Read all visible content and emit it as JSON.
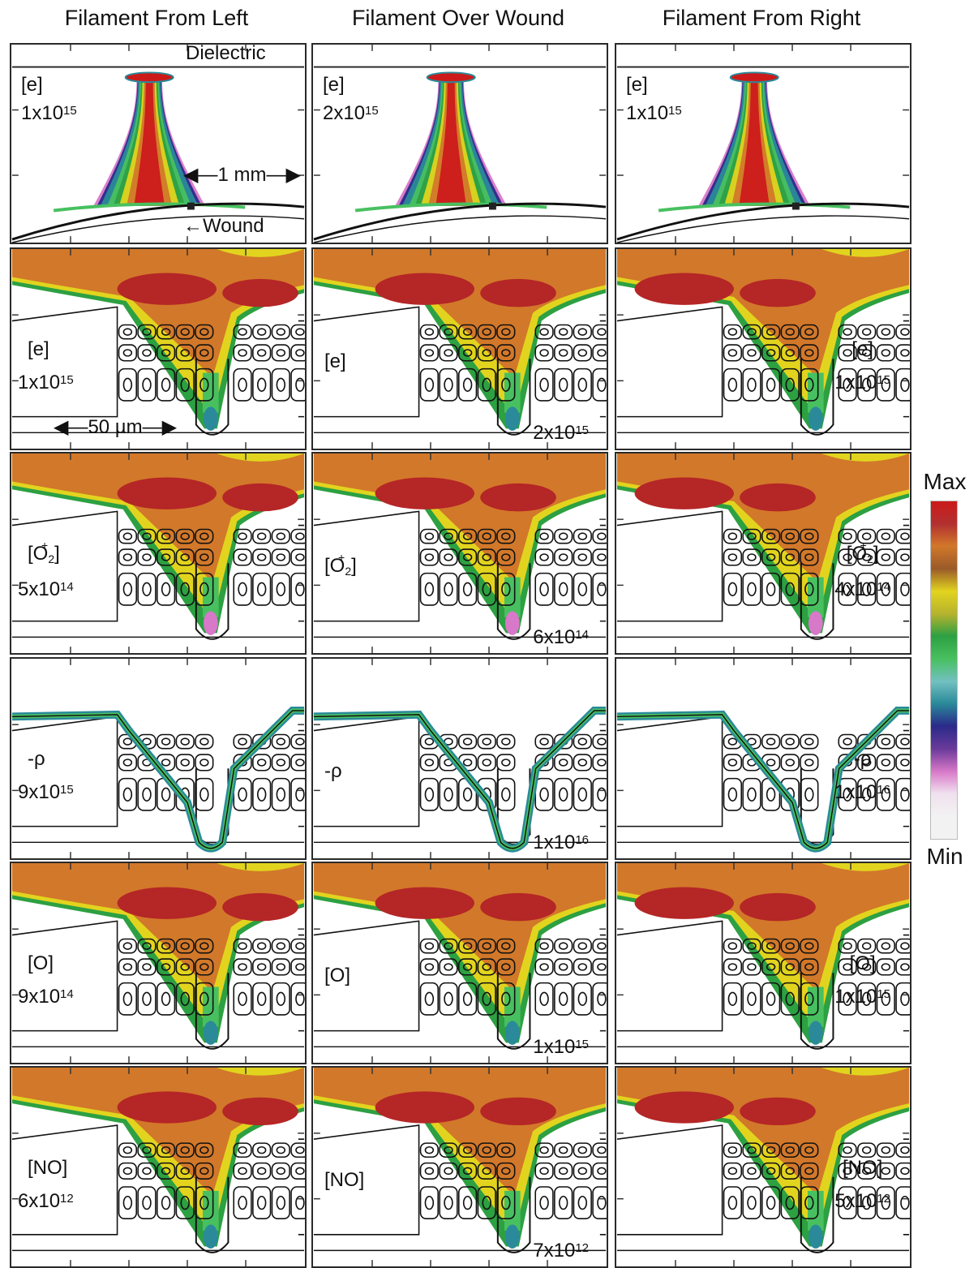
{
  "columns": [
    {
      "title": "Filament From Left"
    },
    {
      "title": "Filament Over Wound"
    },
    {
      "title": "Filament From Right"
    }
  ],
  "annotations": {
    "dielectric": "Dielectric",
    "wound": "Wound",
    "scale_mm": "1 mm",
    "scale_um": "50 µm"
  },
  "rows": [
    {
      "species": "[e]",
      "values": [
        {
          "m": "1x10",
          "e": "15"
        },
        {
          "m": "2x10",
          "e": "15"
        },
        {
          "m": "1x10",
          "e": "15"
        }
      ]
    },
    {
      "species": "[e]",
      "values": [
        {
          "m": "1x10",
          "e": "15"
        },
        {
          "m": "2x10",
          "e": "15"
        },
        {
          "m": "1x10",
          "e": "15"
        }
      ]
    },
    {
      "species_html": "O2+",
      "values": [
        {
          "m": "5x10",
          "e": "14"
        },
        {
          "m": "6x10",
          "e": "14"
        },
        {
          "m": "4x10",
          "e": "14"
        }
      ]
    },
    {
      "species": "-ρ",
      "values": [
        {
          "m": "9x10",
          "e": "15"
        },
        {
          "m": "1x10",
          "e": "16"
        },
        {
          "m": "1x10",
          "e": "16"
        }
      ]
    },
    {
      "species": "[O]",
      "values": [
        {
          "m": "9x10",
          "e": "14"
        },
        {
          "m": "1x10",
          "e": "15"
        },
        {
          "m": "1x10",
          "e": "15"
        }
      ]
    },
    {
      "species": "[NO]",
      "values": [
        {
          "m": "6x10",
          "e": "12"
        },
        {
          "m": "7x10",
          "e": "12"
        },
        {
          "m": "5x10",
          "e": "12"
        }
      ]
    }
  ],
  "colorbar": {
    "max_label": "Max",
    "min_label": "Min",
    "colors": [
      "#cc1a1a",
      "#b23030",
      "#d2782a",
      "#9a5a2a",
      "#e2d41e",
      "#b5b22e",
      "#2da042",
      "#48c060",
      "#72c0c0",
      "#2a8a9a",
      "#2a2a8a",
      "#6a3a9a",
      "#d878c8",
      "#f0e0ee",
      "#f2f2f2"
    ]
  }
}
